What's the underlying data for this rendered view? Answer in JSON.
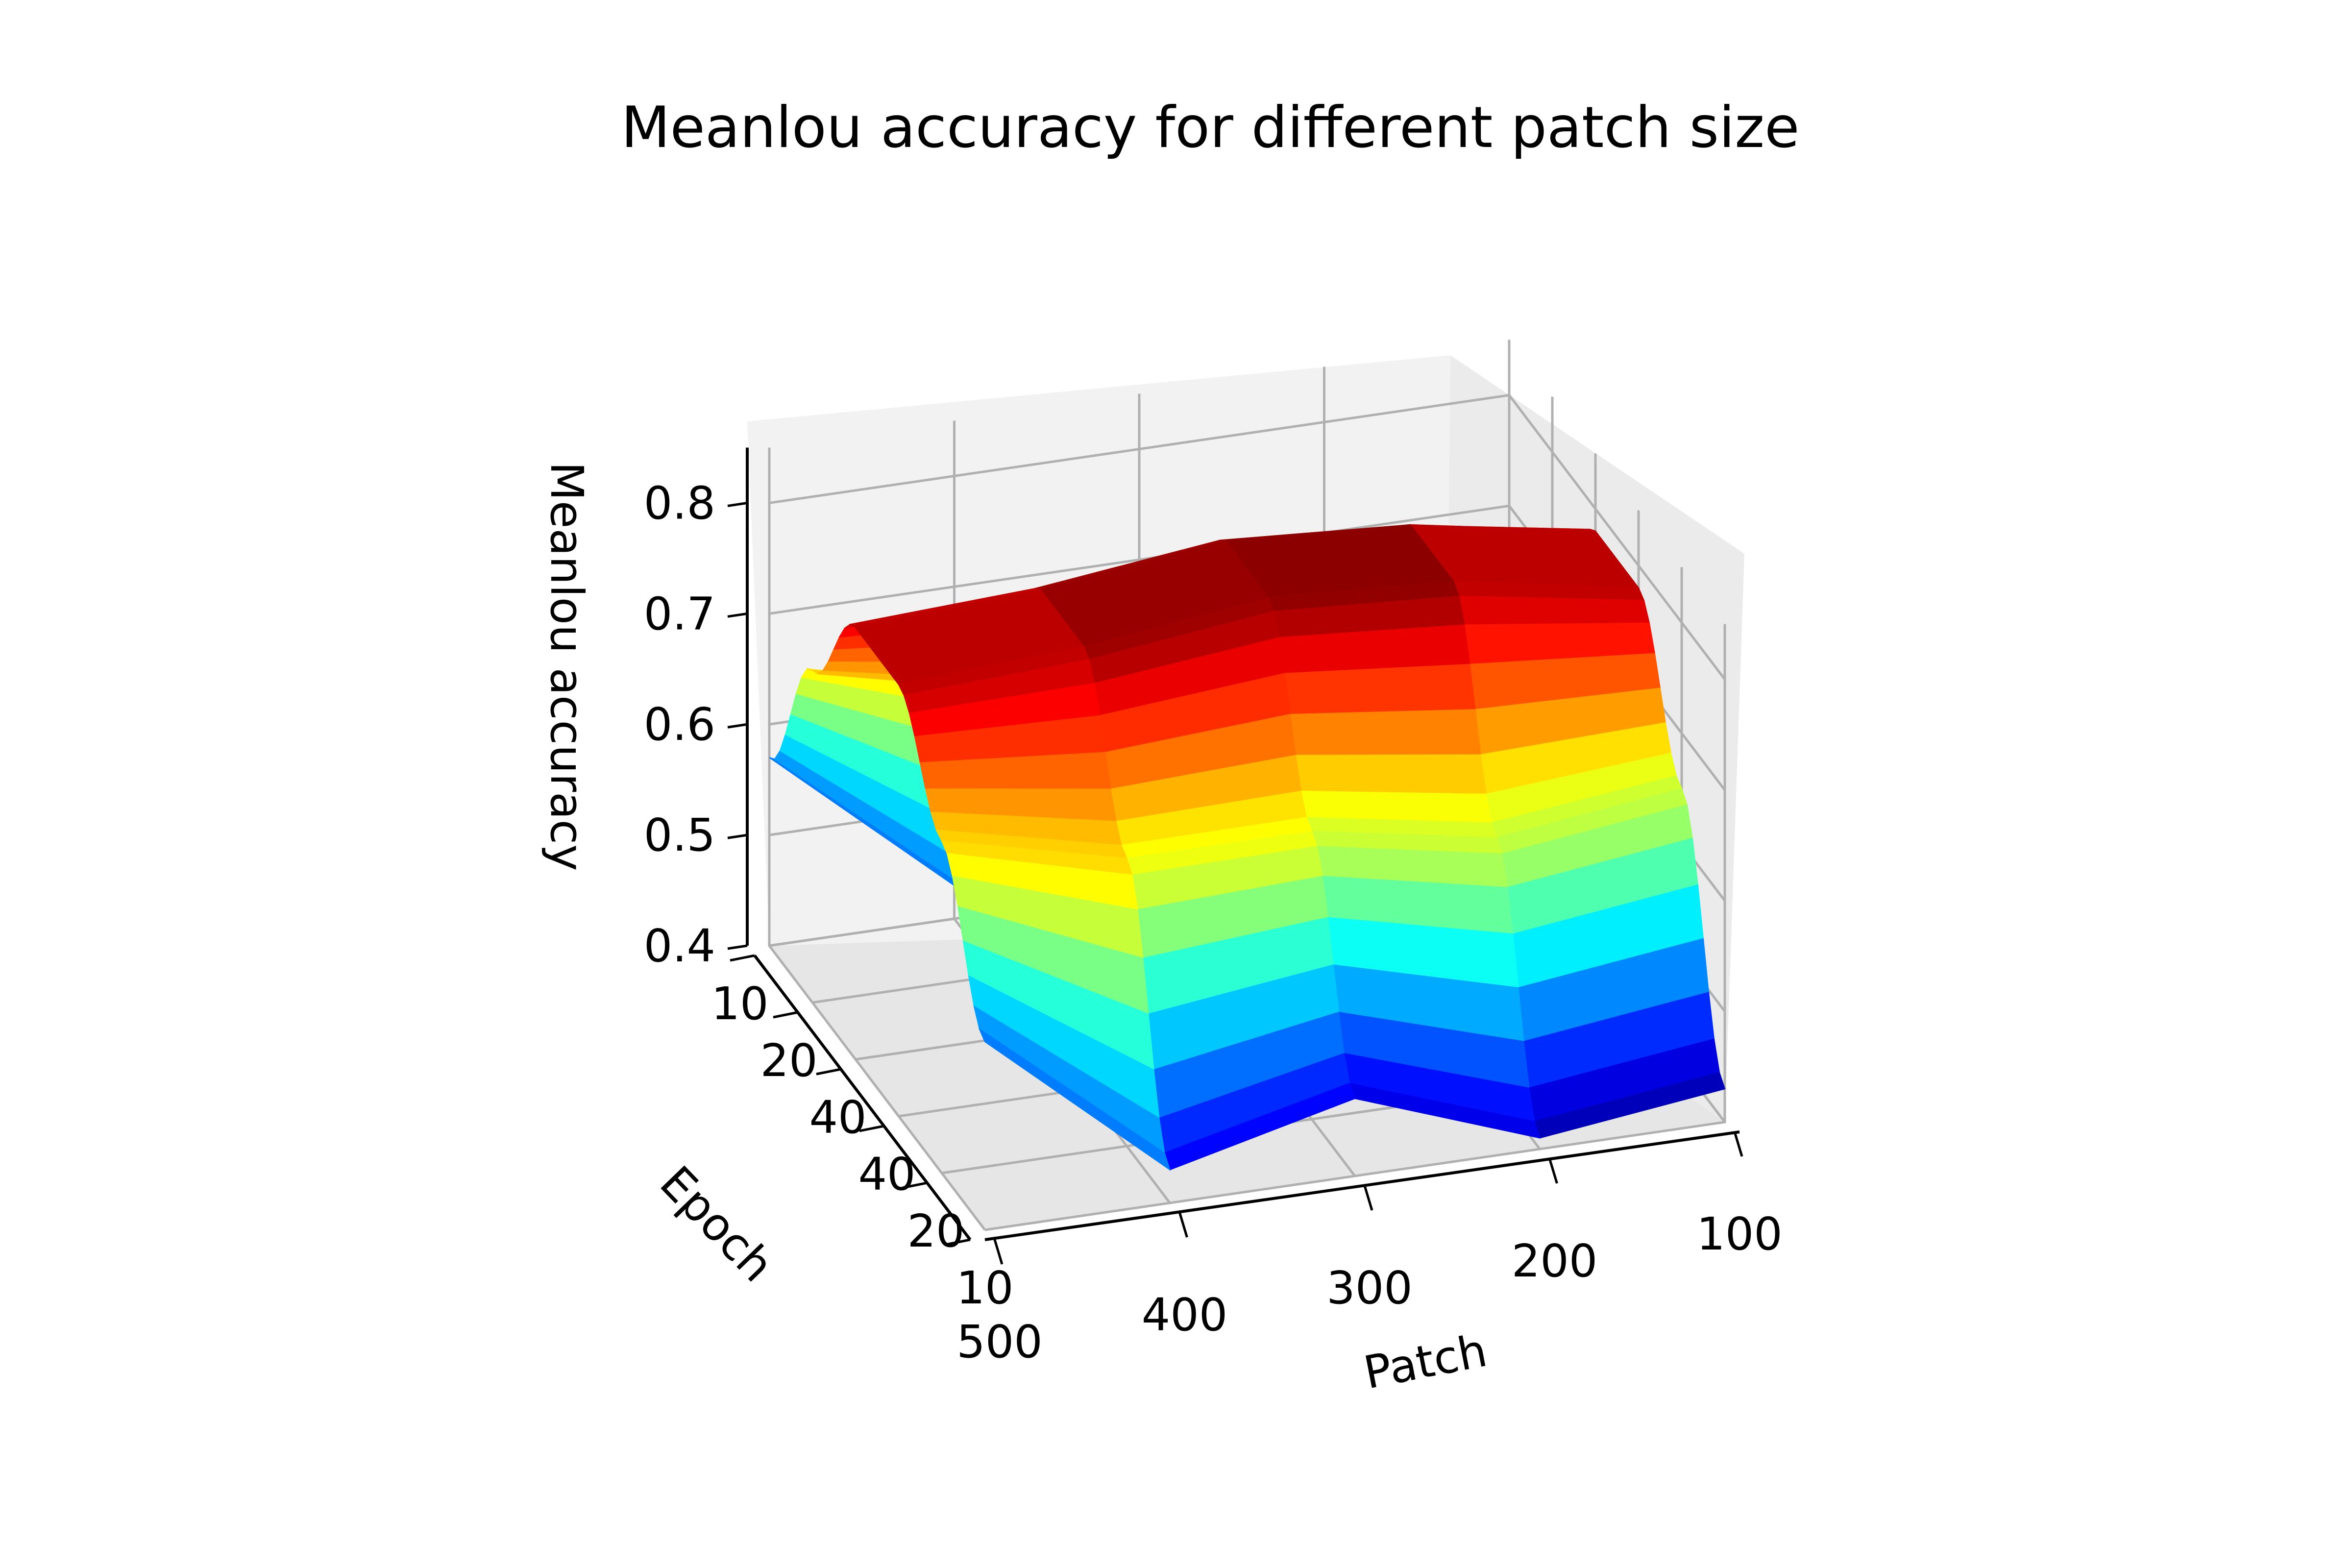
{
  "chart_data": {
    "type": "surface3d",
    "title": "Meanlou accuracy for different patch size",
    "xlabel": "Patch",
    "ylabel": "Epoch",
    "zlabel": "Meanlou accuracy",
    "x_ticks": [
      "500",
      "400",
      "300",
      "200",
      "100"
    ],
    "y_ticks": [
      "10",
      "20",
      "40",
      "40",
      "20",
      "10"
    ],
    "z_ticks": [
      "0.4",
      "0.5",
      "0.6",
      "0.7",
      "0.8"
    ],
    "zlim": [
      0.4,
      0.85
    ],
    "colormap": "jet",
    "grid": true,
    "series": [
      {
        "patch": 500,
        "epochs": [
          10,
          20,
          40,
          40,
          20,
          10
        ],
        "values": [
          0.57,
          0.7,
          0.79,
          0.79,
          0.7,
          0.57
        ]
      },
      {
        "patch": 400,
        "epochs": [
          10,
          20,
          40,
          40,
          20,
          10
        ],
        "values": [
          0.43,
          0.66,
          0.8,
          0.8,
          0.66,
          0.43
        ]
      },
      {
        "patch": 300,
        "epochs": [
          10,
          20,
          40,
          40,
          20,
          10
        ],
        "values": [
          0.47,
          0.66,
          0.82,
          0.82,
          0.66,
          0.47
        ]
      },
      {
        "patch": 200,
        "epochs": [
          10,
          20,
          40,
          40,
          20,
          10
        ],
        "values": [
          0.41,
          0.63,
          0.81,
          0.81,
          0.63,
          0.41
        ]
      },
      {
        "patch": 100,
        "epochs": [
          10,
          20,
          40,
          40,
          20,
          10
        ],
        "values": [
          0.43,
          0.65,
          0.78,
          0.78,
          0.65,
          0.43
        ]
      }
    ]
  }
}
